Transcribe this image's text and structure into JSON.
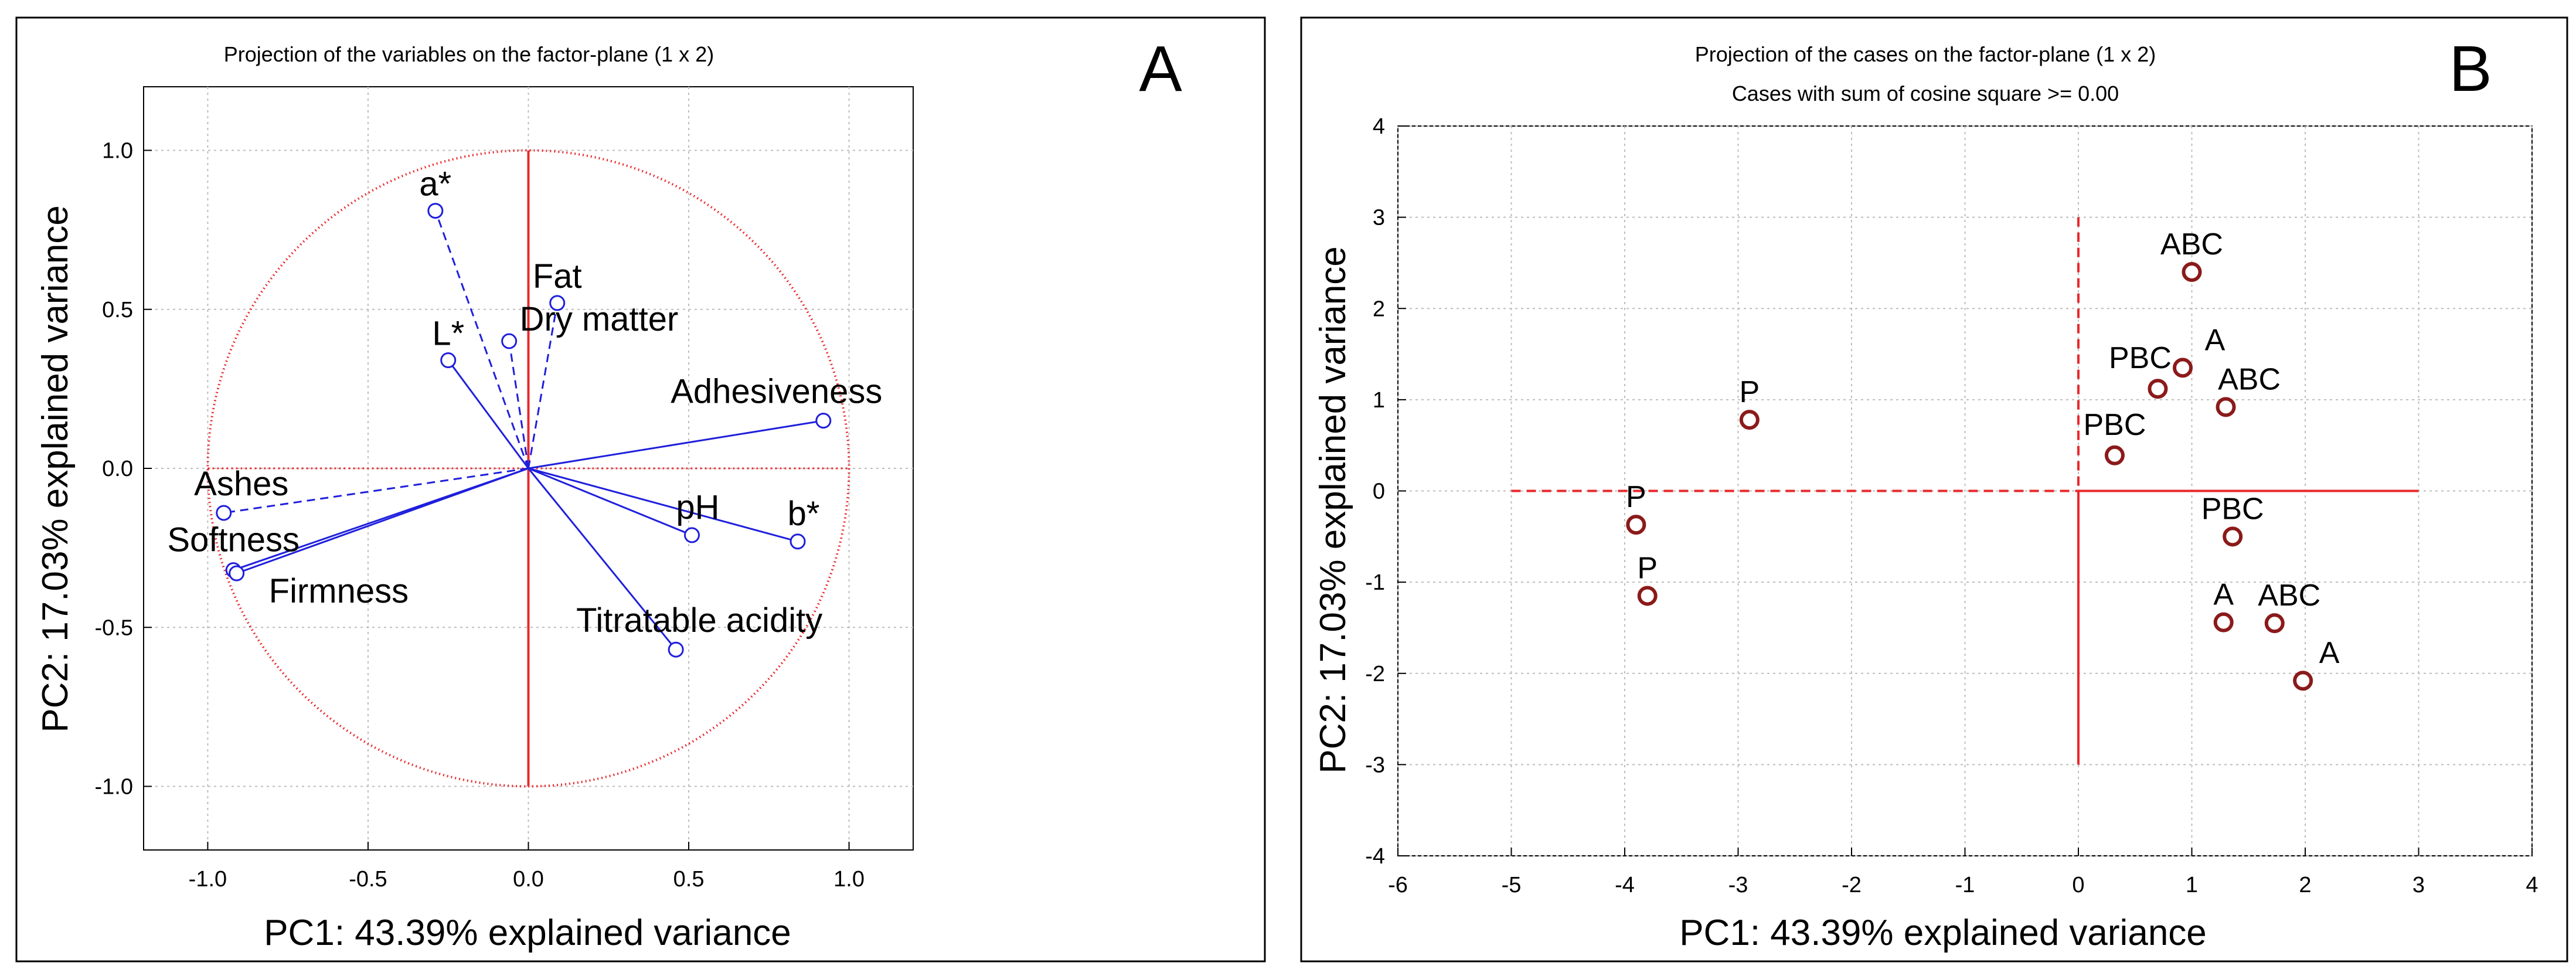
{
  "chart_data": [
    {
      "type": "scatter",
      "subtype": "correlation-circle",
      "panel_letter": "A",
      "title": "Projection of the variables on the factor-plane (1 x 2)",
      "xlabel": "PC1: 43.39% explained variance",
      "ylabel": "PC2: 17.03% explained variance",
      "xlim": [
        -1.2,
        1.2
      ],
      "ylim": [
        -1.2,
        1.2
      ],
      "xticks": [
        -1.0,
        -0.5,
        0.0,
        0.5,
        1.0
      ],
      "yticks": [
        -1.0,
        -0.5,
        0.0,
        0.5,
        1.0
      ],
      "xtick_labels": [
        "-1.0",
        "-0.5",
        "0.0",
        "0.5",
        "1.0"
      ],
      "ytick_labels": [
        "-1.0",
        "-0.5",
        "0.0",
        "0.5",
        "1.0"
      ],
      "grid": true,
      "circle_radius": 1.0,
      "colors": {
        "vectors": "#1f1fdc",
        "circle": "#e8282c",
        "axes": "#e8282c"
      },
      "variables": [
        {
          "name": "a*",
          "x": -0.29,
          "y": 0.81,
          "style": "dashed",
          "label_pos": "top"
        },
        {
          "name": "Fat",
          "x": 0.09,
          "y": 0.52,
          "style": "dashed",
          "label_pos": "top"
        },
        {
          "name": "Dry matter",
          "x": -0.06,
          "y": 0.4,
          "style": "dashed",
          "label_pos": "right"
        },
        {
          "name": "L*",
          "x": -0.25,
          "y": 0.34,
          "style": "solid",
          "label_pos": "top"
        },
        {
          "name": "Adhesiveness",
          "x": 0.92,
          "y": 0.15,
          "style": "solid",
          "label_pos": "top"
        },
        {
          "name": "Ashes",
          "x": -0.95,
          "y": -0.14,
          "style": "dashed",
          "label_pos": "top"
        },
        {
          "name": "Softness",
          "x": -0.92,
          "y": -0.32,
          "style": "solid",
          "label_pos": "top"
        },
        {
          "name": "Firmness",
          "x": -0.91,
          "y": -0.33,
          "style": "solid",
          "label_pos": "bottom-right"
        },
        {
          "name": "pH",
          "x": 0.51,
          "y": -0.21,
          "style": "solid",
          "label_pos": "top"
        },
        {
          "name": "b*",
          "x": 0.84,
          "y": -0.23,
          "style": "solid",
          "label_pos": "top"
        },
        {
          "name": "Titratable acidity",
          "x": 0.46,
          "y": -0.57,
          "style": "solid",
          "label_pos": "top"
        }
      ]
    },
    {
      "type": "scatter",
      "panel_letter": "B",
      "title": "Projection of the cases on the factor-plane (1 x 2)",
      "subtitle": "Cases with sum of cosine square >=  0.00",
      "xlabel": "PC1: 43.39% explained variance",
      "ylabel": "PC2: 17.03% explained variance",
      "xlim": [
        -6,
        4
      ],
      "ylim": [
        -4,
        4
      ],
      "xticks": [
        -6,
        -5,
        -4,
        -3,
        -2,
        -1,
        0,
        1,
        2,
        3,
        4
      ],
      "yticks": [
        -4,
        -3,
        -2,
        -1,
        0,
        1,
        2,
        3,
        4
      ],
      "xtick_labels": [
        "-6",
        "-5",
        "-4",
        "-3",
        "-2",
        "-1",
        "0",
        "1",
        "2",
        "3",
        "4"
      ],
      "ytick_labels": [
        "-4",
        "-3",
        "-2",
        "-1",
        "0",
        "1",
        "2",
        "3",
        "4"
      ],
      "grid": true,
      "colors": {
        "points": "#8b1a1a",
        "axes": "#e8282c"
      },
      "points": [
        {
          "label": "ABC",
          "x": 1.0,
          "y": 2.4,
          "label_pos": "top"
        },
        {
          "label": "A",
          "x": 0.92,
          "y": 1.35,
          "label_pos": "top-right"
        },
        {
          "label": "PBC",
          "x": 0.7,
          "y": 1.12,
          "label_pos": "top"
        },
        {
          "label": "ABC",
          "x": 1.3,
          "y": 0.92,
          "label_pos": "top-right"
        },
        {
          "label": "PBC",
          "x": 0.32,
          "y": 0.39,
          "label_pos": "top"
        },
        {
          "label": "P",
          "x": -2.9,
          "y": 0.78,
          "label_pos": "top"
        },
        {
          "label": "P",
          "x": -3.9,
          "y": -0.37,
          "label_pos": "top"
        },
        {
          "label": "P",
          "x": -3.8,
          "y": -1.15,
          "label_pos": "top"
        },
        {
          "label": "PBC",
          "x": 1.36,
          "y": -0.5,
          "label_pos": "top"
        },
        {
          "label": "A",
          "x": 1.28,
          "y": -1.44,
          "label_pos": "top"
        },
        {
          "label": "ABC",
          "x": 1.73,
          "y": -1.45,
          "label_pos": "top-right"
        },
        {
          "label": "A",
          "x": 1.98,
          "y": -2.08,
          "label_pos": "top-right"
        }
      ]
    }
  ]
}
